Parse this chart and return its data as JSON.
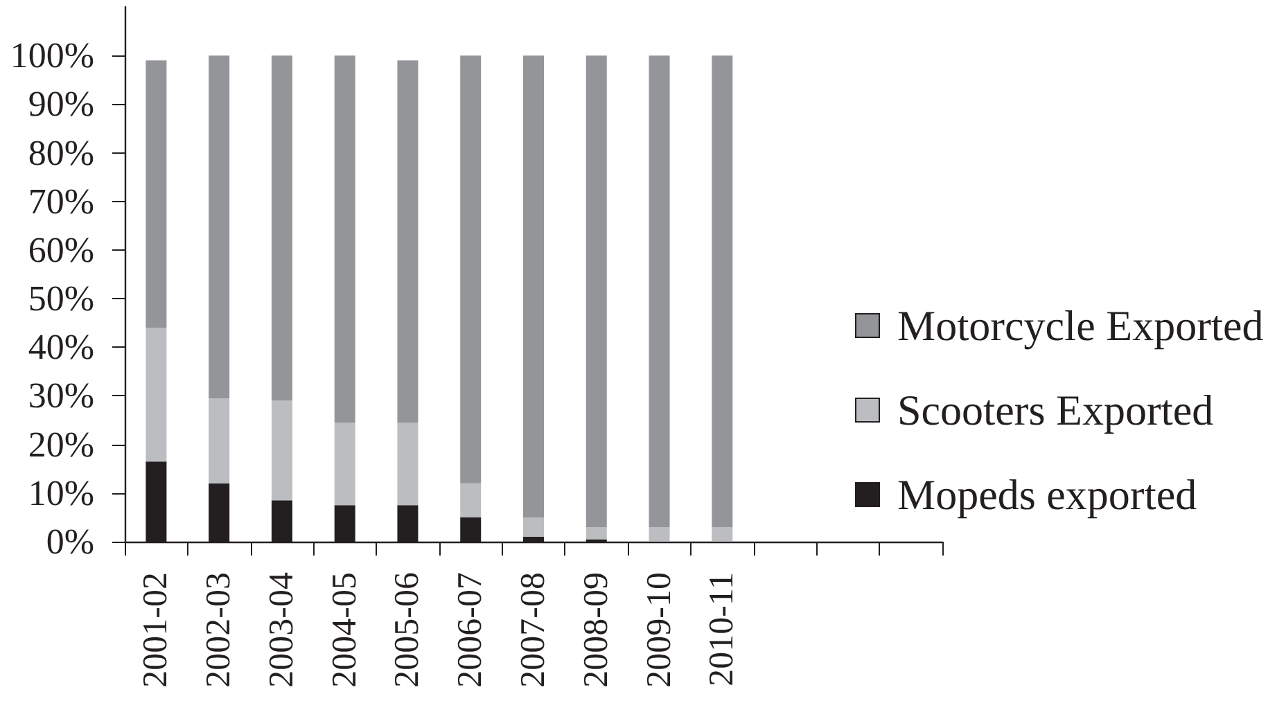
{
  "chart_data": {
    "type": "bar",
    "stacked": true,
    "categories": [
      "2001-02",
      "2002-03",
      "2003-04",
      "2004-05",
      "2005-06",
      "2006-07",
      "2007-08",
      "2008-09",
      "2009-10",
      "2010-11",
      null,
      null,
      null
    ],
    "series": [
      {
        "name": "Mopeds exported",
        "color": "#231f20",
        "values": [
          16.5,
          12,
          8.5,
          7.5,
          7.5,
          5,
          1,
          0.5,
          0,
          0,
          null,
          null,
          null
        ]
      },
      {
        "name": "Scooters Exported",
        "color": "#bcbdc0",
        "values": [
          27.5,
          17.5,
          20.5,
          17,
          17,
          7,
          4,
          2.5,
          3,
          3,
          null,
          null,
          null
        ]
      },
      {
        "name": "Motorcycle Exported",
        "color": "#939598",
        "values": [
          55,
          70.5,
          71,
          75.5,
          74.5,
          88,
          95,
          97,
          97,
          97,
          null,
          null,
          null
        ]
      }
    ],
    "ylim": [
      0,
      110
    ],
    "yticks": [
      {
        "value": 0,
        "label": "0%"
      },
      {
        "value": 10,
        "label": "10%"
      },
      {
        "value": 20,
        "label": "20%"
      },
      {
        "value": 30,
        "label": "30%"
      },
      {
        "value": 40,
        "label": "40%"
      },
      {
        "value": 50,
        "label": "50%"
      },
      {
        "value": 60,
        "label": "60%"
      },
      {
        "value": 70,
        "label": "70%"
      },
      {
        "value": 80,
        "label": "80%"
      },
      {
        "value": 90,
        "label": "90%"
      },
      {
        "value": 100,
        "label": "100%"
      }
    ],
    "legend": "right"
  }
}
